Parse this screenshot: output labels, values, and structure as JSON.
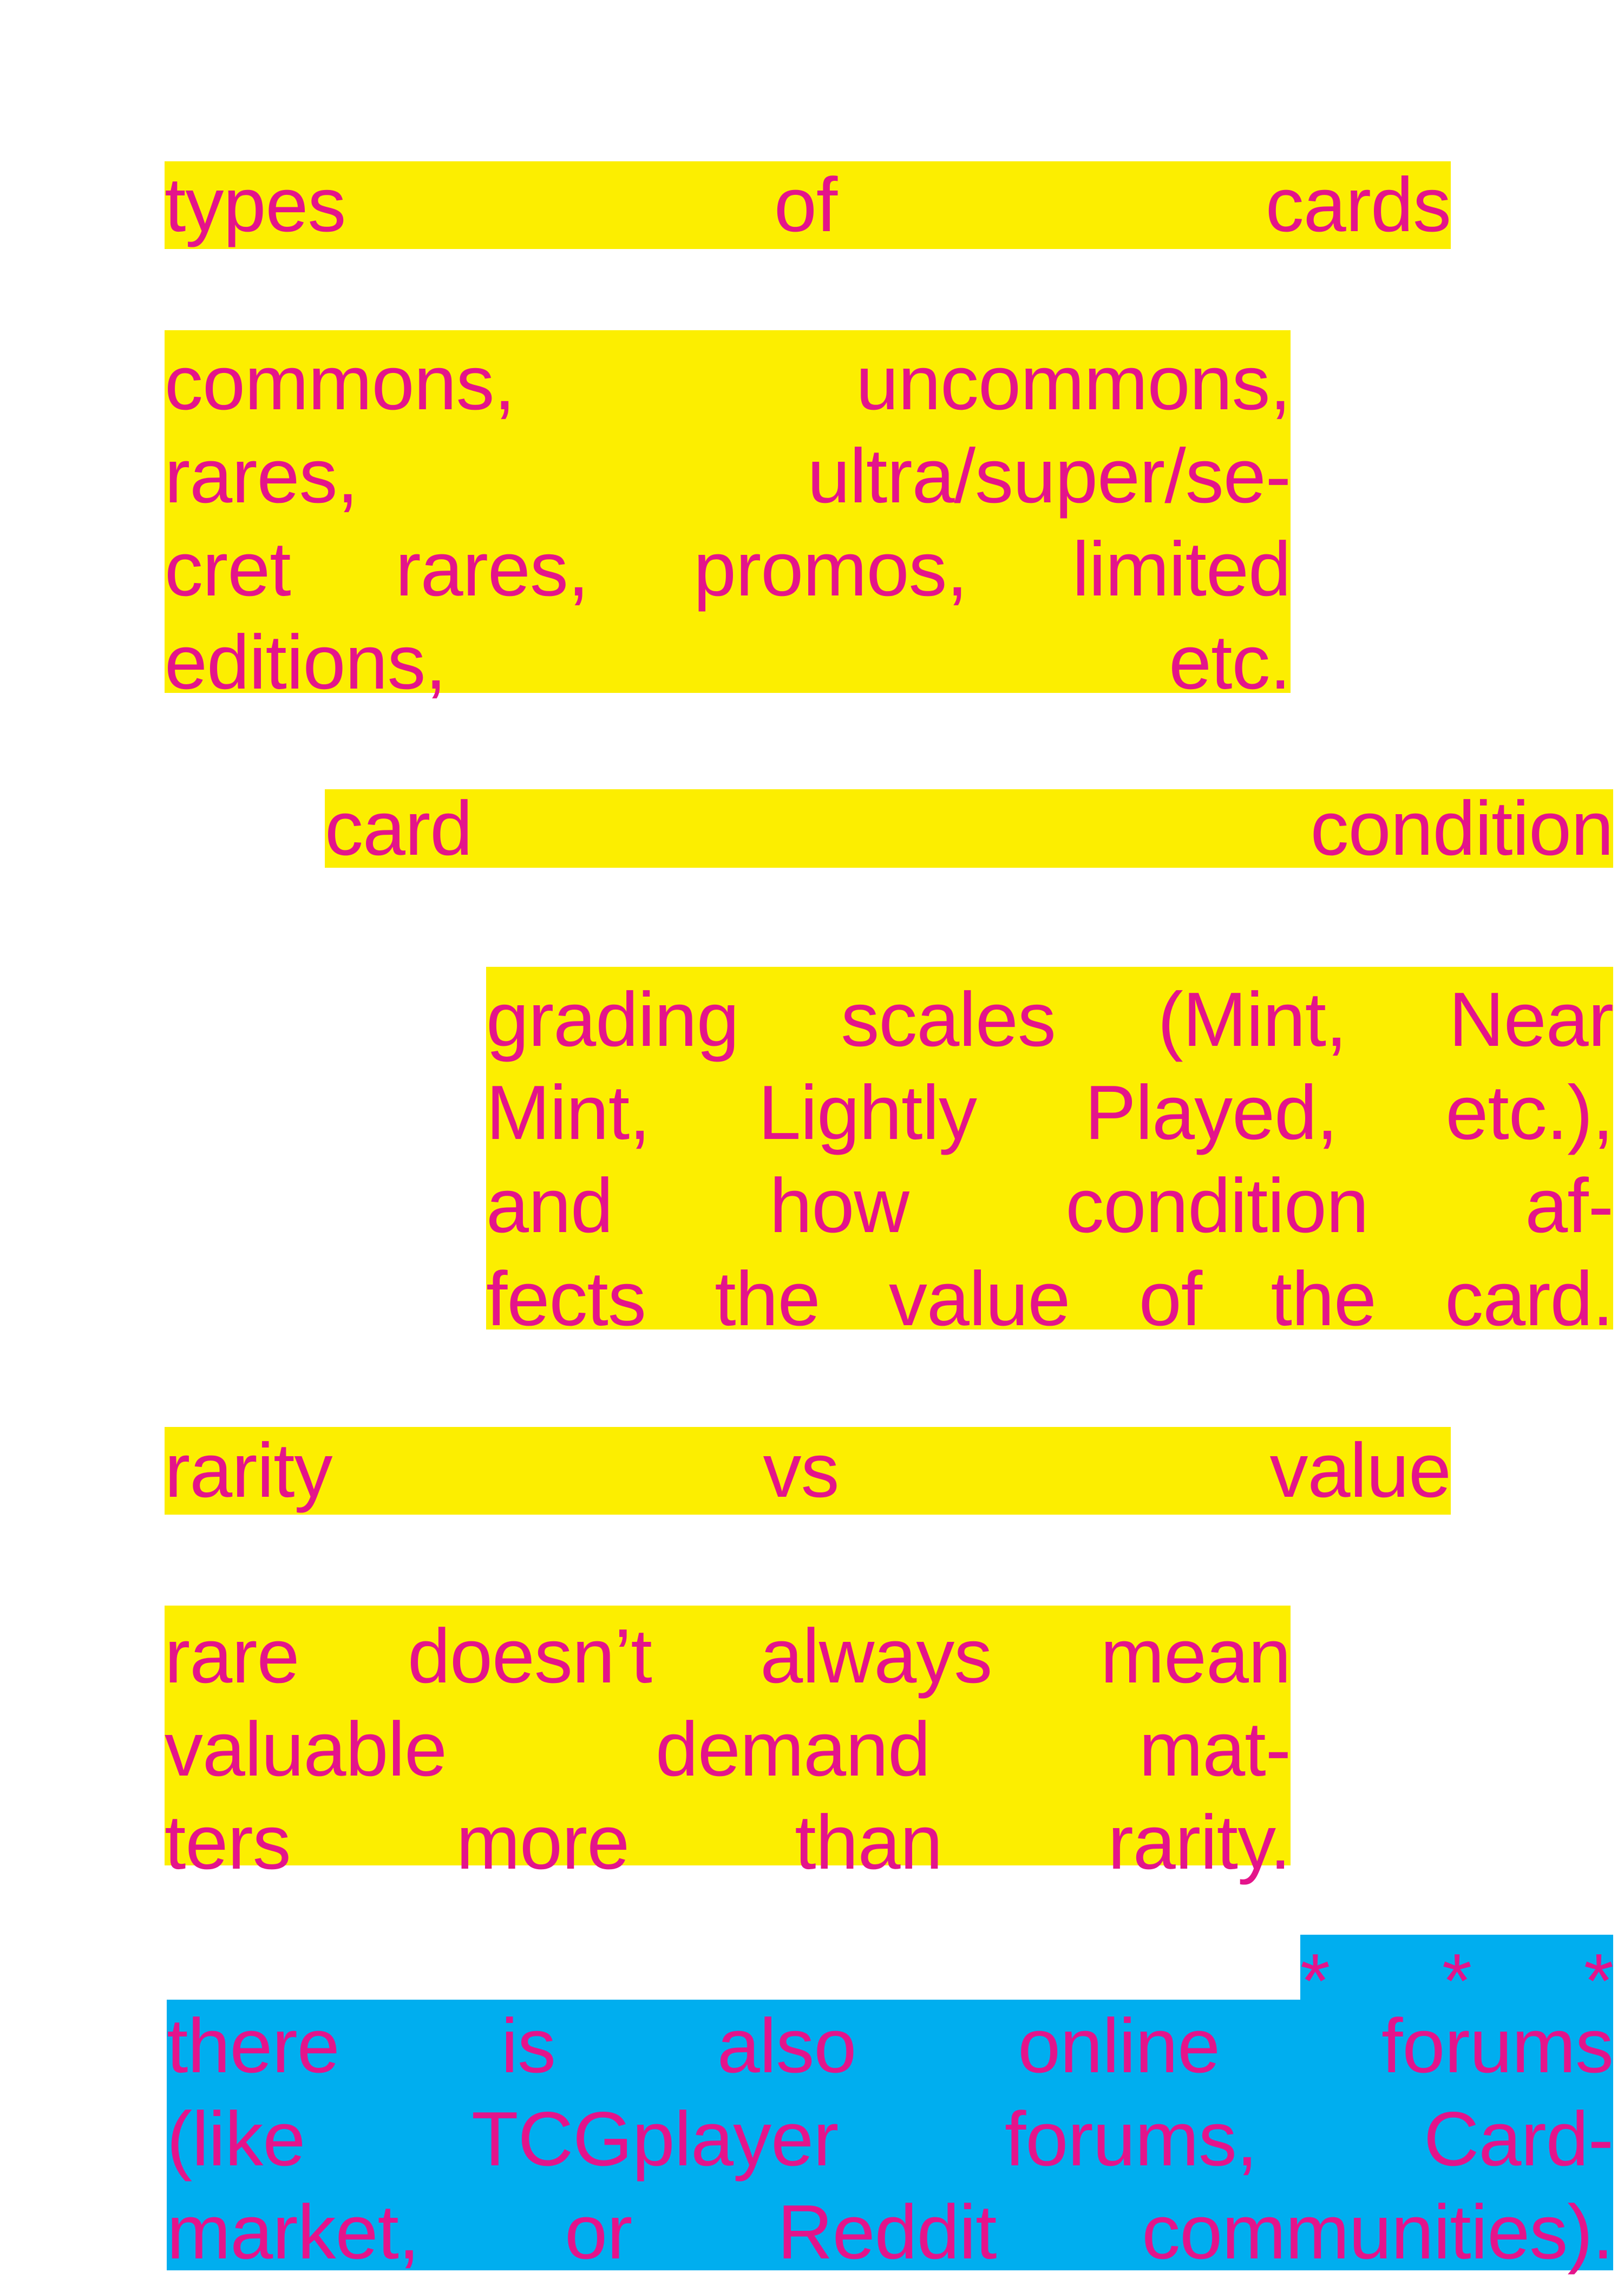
{
  "colors": {
    "text": "#e4148b",
    "highlight_yellow": "#fcee00",
    "highlight_blue": "#00aeef"
  },
  "sections": {
    "types_heading": [
      "types",
      "of",
      "cards"
    ],
    "types_body": [
      [
        "commons,",
        "uncommons,"
      ],
      [
        "rares,",
        "ultra/super/se-"
      ],
      [
        "cret",
        "rares,",
        "promos,",
        "limited"
      ],
      [
        "editions,",
        "etc."
      ]
    ],
    "condition_heading": [
      "card",
      "condition"
    ],
    "condition_body": [
      [
        "grading",
        "scales",
        "(Mint,",
        "Near"
      ],
      [
        "Mint,",
        "Lightly",
        "Played,",
        "etc.),"
      ],
      [
        "and",
        "how",
        "condition",
        "af-"
      ],
      [
        "fects",
        "the",
        "value",
        "of",
        "the",
        "card."
      ]
    ],
    "rarity_heading": [
      "rarity",
      "vs",
      "value"
    ],
    "rarity_body": [
      [
        "rare",
        "doesn’t",
        "always",
        "mean"
      ],
      [
        "valuable",
        "demand",
        "mat-"
      ],
      [
        "ters",
        "more",
        "than",
        "rarity."
      ]
    ],
    "separator": [
      "*",
      "*",
      "*"
    ],
    "forums_body": [
      [
        "there",
        "is",
        "also",
        "online",
        "forums"
      ],
      [
        "(like",
        "TCGplayer",
        "forums,",
        "Card-"
      ],
      [
        "market,",
        "or",
        "Reddit",
        "communities)."
      ]
    ]
  }
}
